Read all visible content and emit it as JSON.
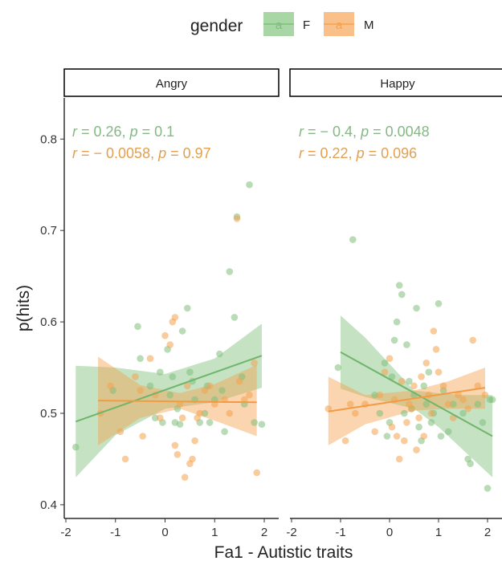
{
  "chart_data": {
    "type": "scatter",
    "xlabel": "Fa1 - Autistic traits",
    "ylabel": "p(hits)",
    "xlim": [
      -2,
      2.1
    ],
    "ylim": [
      0.385,
      0.845
    ],
    "x_ticks": [
      -2,
      -1,
      0,
      1,
      2
    ],
    "y_ticks": [
      0.4,
      0.5,
      0.6,
      0.7,
      0.8
    ],
    "y_tick_labels": [
      "0.4",
      "0.5",
      "0.6",
      "0.7",
      "0.8"
    ],
    "legend": {
      "title": "gender",
      "placement": "top",
      "key_glyph": "a",
      "entries": [
        {
          "label": "F",
          "color": "#7fbf7b"
        },
        {
          "label": "M",
          "color": "#f4a24e"
        }
      ]
    },
    "colors": {
      "F": "#7fbf7b",
      "M": "#f4a24e",
      "F_text": "#86b886",
      "M_text": "#e3a04f"
    },
    "panels": [
      {
        "title": "Angry",
        "annotations": [
          {
            "series": "F",
            "r_label": "r",
            "r_value": " = 0.26, ",
            "p_label": "p",
            "p_value": " = 0.1"
          },
          {
            "series": "M",
            "r_label": "r",
            "r_value": " = − 0.0058, ",
            "p_label": "p",
            "p_value": " = 0.97"
          }
        ],
        "series": [
          {
            "name": "F",
            "points": [
              [
                -1.8,
                0.463
              ],
              [
                -1.05,
                0.525
              ],
              [
                -0.55,
                0.595
              ],
              [
                -0.5,
                0.56
              ],
              [
                -0.3,
                0.53
              ],
              [
                -0.2,
                0.495
              ],
              [
                -0.1,
                0.545
              ],
              [
                0.05,
                0.57
              ],
              [
                0.1,
                0.52
              ],
              [
                0.15,
                0.54
              ],
              [
                0.2,
                0.49
              ],
              [
                0.25,
                0.505
              ],
              [
                0.35,
                0.59
              ],
              [
                0.45,
                0.615
              ],
              [
                0.5,
                0.545
              ],
              [
                0.55,
                0.535
              ],
              [
                0.6,
                0.515
              ],
              [
                0.7,
                0.49
              ],
              [
                0.8,
                0.5
              ],
              [
                0.85,
                0.53
              ],
              [
                0.9,
                0.49
              ],
              [
                1.0,
                0.515
              ],
              [
                1.1,
                0.565
              ],
              [
                1.15,
                0.525
              ],
              [
                1.2,
                0.48
              ],
              [
                1.3,
                0.655
              ],
              [
                1.4,
                0.605
              ],
              [
                1.45,
                0.715
              ],
              [
                1.55,
                0.54
              ],
              [
                1.6,
                0.51
              ],
              [
                1.7,
                0.75
              ],
              [
                1.8,
                0.49
              ],
              [
                1.95,
                0.488
              ],
              [
                -0.05,
                0.49
              ],
              [
                0.3,
                0.488
              ]
            ],
            "fit": {
              "x": [
                -1.8,
                1.95
              ],
              "y": [
                0.491,
                0.563
              ]
            },
            "band": {
              "x": [
                -1.8,
                -1.0,
                0.0,
                1.0,
                1.95
              ],
              "lower": [
                0.43,
                0.476,
                0.505,
                0.512,
                0.528
              ],
              "upper": [
                0.552,
                0.55,
                0.543,
                0.56,
                0.598
              ]
            }
          },
          {
            "name": "M",
            "points": [
              [
                -1.3,
                0.5
              ],
              [
                -1.1,
                0.53
              ],
              [
                -0.9,
                0.48
              ],
              [
                -0.8,
                0.45
              ],
              [
                -0.6,
                0.54
              ],
              [
                -0.5,
                0.525
              ],
              [
                -0.45,
                0.475
              ],
              [
                -0.3,
                0.56
              ],
              [
                -0.2,
                0.52
              ],
              [
                -0.1,
                0.495
              ],
              [
                0.0,
                0.585
              ],
              [
                0.1,
                0.575
              ],
              [
                0.15,
                0.6
              ],
              [
                0.2,
                0.605
              ],
              [
                0.2,
                0.465
              ],
              [
                0.25,
                0.455
              ],
              [
                0.3,
                0.51
              ],
              [
                0.35,
                0.495
              ],
              [
                0.4,
                0.43
              ],
              [
                0.45,
                0.53
              ],
              [
                0.5,
                0.445
              ],
              [
                0.55,
                0.45
              ],
              [
                0.6,
                0.47
              ],
              [
                0.7,
                0.5
              ],
              [
                0.8,
                0.525
              ],
              [
                0.9,
                0.53
              ],
              [
                1.0,
                0.51
              ],
              [
                1.2,
                0.515
              ],
              [
                1.3,
                0.5
              ],
              [
                1.45,
                0.713
              ],
              [
                1.5,
                0.535
              ],
              [
                1.6,
                0.515
              ],
              [
                1.7,
                0.52
              ],
              [
                1.8,
                0.555
              ],
              [
                1.85,
                0.435
              ],
              [
                0.65,
                0.495
              ]
            ],
            "fit": {
              "x": [
                -1.35,
                1.85
              ],
              "y": [
                0.514,
                0.512
              ]
            },
            "band": {
              "x": [
                -1.35,
                -0.5,
                0.3,
                1.0,
                1.85
              ],
              "lower": [
                0.465,
                0.495,
                0.505,
                0.492,
                0.475
              ],
              "upper": [
                0.562,
                0.531,
                0.522,
                0.532,
                0.553
              ]
            }
          }
        ]
      },
      {
        "title": "Happy",
        "annotations": [
          {
            "series": "F",
            "r_label": "r",
            "r_value": " = − 0.4, ",
            "p_label": "p",
            "p_value": " = 0.0048"
          },
          {
            "series": "M",
            "r_label": "r",
            "r_value": " = 0.22, ",
            "p_label": "p",
            "p_value": " = 0.096"
          }
        ],
        "series": [
          {
            "name": "F",
            "points": [
              [
                -1.05,
                0.55
              ],
              [
                -0.75,
                0.69
              ],
              [
                -0.3,
                0.52
              ],
              [
                -0.2,
                0.5
              ],
              [
                -0.1,
                0.555
              ],
              [
                0.0,
                0.49
              ],
              [
                0.05,
                0.54
              ],
              [
                0.1,
                0.58
              ],
              [
                0.15,
                0.6
              ],
              [
                0.2,
                0.64
              ],
              [
                0.25,
                0.63
              ],
              [
                0.3,
                0.5
              ],
              [
                0.35,
                0.575
              ],
              [
                0.4,
                0.535
              ],
              [
                0.5,
                0.52
              ],
              [
                0.55,
                0.615
              ],
              [
                0.6,
                0.485
              ],
              [
                0.7,
                0.53
              ],
              [
                0.75,
                0.51
              ],
              [
                0.8,
                0.545
              ],
              [
                0.85,
                0.49
              ],
              [
                0.9,
                0.5
              ],
              [
                1.0,
                0.62
              ],
              [
                1.05,
                0.475
              ],
              [
                1.1,
                0.525
              ],
              [
                1.2,
                0.48
              ],
              [
                1.3,
                0.51
              ],
              [
                1.5,
                0.5
              ],
              [
                1.6,
                0.45
              ],
              [
                1.65,
                0.445
              ],
              [
                1.8,
                0.51
              ],
              [
                1.9,
                0.49
              ],
              [
                2.0,
                0.418
              ],
              [
                2.05,
                0.515
              ],
              [
                2.1,
                0.515
              ],
              [
                -0.05,
                0.475
              ],
              [
                0.45,
                0.505
              ],
              [
                0.65,
                0.47
              ]
            ],
            "fit": {
              "x": [
                -1.0,
                2.1
              ],
              "y": [
                0.567,
                0.475
              ]
            },
            "band": {
              "x": [
                -1.0,
                -0.5,
                0.5,
                1.0,
                1.5,
                2.1
              ],
              "lower": [
                0.527,
                0.518,
                0.505,
                0.485,
                0.46,
                0.43
              ],
              "upper": [
                0.607,
                0.583,
                0.525,
                0.522,
                0.52,
                0.52
              ]
            }
          },
          {
            "name": "M",
            "points": [
              [
                -1.25,
                0.505
              ],
              [
                -0.9,
                0.47
              ],
              [
                -0.8,
                0.51
              ],
              [
                -0.7,
                0.5
              ],
              [
                -0.5,
                0.51
              ],
              [
                -0.3,
                0.48
              ],
              [
                -0.2,
                0.52
              ],
              [
                -0.1,
                0.545
              ],
              [
                0.0,
                0.56
              ],
              [
                0.05,
                0.485
              ],
              [
                0.1,
                0.515
              ],
              [
                0.2,
                0.45
              ],
              [
                0.25,
                0.535
              ],
              [
                0.3,
                0.47
              ],
              [
                0.35,
                0.49
              ],
              [
                0.4,
                0.51
              ],
              [
                0.45,
                0.505
              ],
              [
                0.5,
                0.53
              ],
              [
                0.55,
                0.46
              ],
              [
                0.6,
                0.495
              ],
              [
                0.65,
                0.54
              ],
              [
                0.7,
                0.475
              ],
              [
                0.8,
                0.52
              ],
              [
                0.85,
                0.5
              ],
              [
                0.9,
                0.59
              ],
              [
                0.95,
                0.57
              ],
              [
                1.0,
                0.545
              ],
              [
                1.1,
                0.53
              ],
              [
                1.2,
                0.51
              ],
              [
                1.3,
                0.495
              ],
              [
                1.4,
                0.52
              ],
              [
                1.5,
                0.515
              ],
              [
                1.6,
                0.505
              ],
              [
                1.7,
                0.58
              ],
              [
                1.8,
                0.53
              ],
              [
                1.95,
                0.52
              ],
              [
                0.15,
                0.475
              ],
              [
                0.75,
                0.555
              ]
            ],
            "fit": {
              "x": [
                -1.25,
                1.95
              ],
              "y": [
                0.502,
                0.528
              ]
            },
            "band": {
              "x": [
                -1.25,
                -0.5,
                0.5,
                1.2,
                1.95
              ],
              "lower": [
                0.465,
                0.488,
                0.503,
                0.505,
                0.505
              ],
              "upper": [
                0.54,
                0.52,
                0.525,
                0.535,
                0.55
              ]
            }
          }
        ]
      }
    ]
  }
}
